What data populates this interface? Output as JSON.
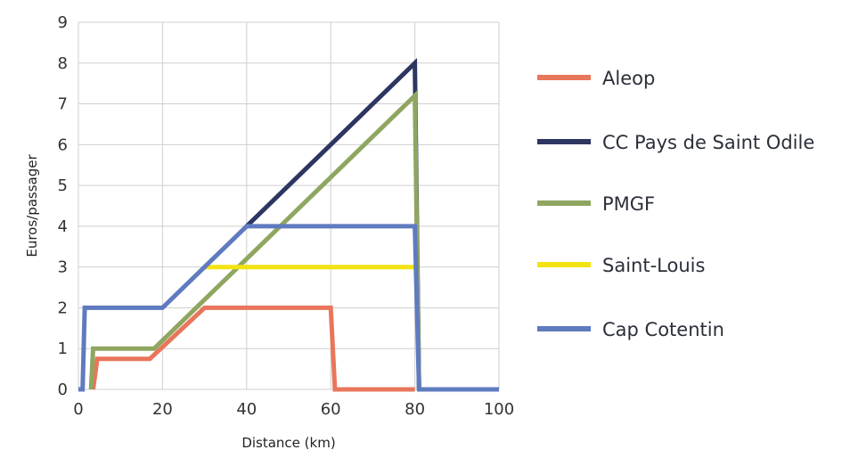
{
  "chart_data": {
    "type": "line",
    "title": "",
    "xlabel": "Distance (km)",
    "ylabel": "Euros/passager",
    "xlim": [
      0,
      100
    ],
    "ylim": [
      0,
      9
    ],
    "x_ticks": [
      0,
      20,
      40,
      60,
      80,
      100
    ],
    "y_ticks": [
      0,
      1,
      2,
      3,
      4,
      5,
      6,
      7,
      8,
      9
    ],
    "grid": true,
    "legend_position": "right",
    "series": [
      {
        "name": "Aleop",
        "color": "#e8765b",
        "points": [
          [
            3.5,
            0
          ],
          [
            4.5,
            0.75
          ],
          [
            17,
            0.75
          ],
          [
            30,
            2
          ],
          [
            60,
            2
          ],
          [
            61,
            0
          ],
          [
            80,
            0
          ]
        ]
      },
      {
        "name": "CC Pays de Saint Odile",
        "color": "#2d3561",
        "points": [
          [
            40,
            4
          ],
          [
            80,
            8
          ],
          [
            81,
            0
          ]
        ]
      },
      {
        "name": "PMGF",
        "color": "#8fa660",
        "points": [
          [
            3,
            0
          ],
          [
            3.5,
            1
          ],
          [
            18,
            1
          ],
          [
            80,
            7.2
          ],
          [
            81,
            0
          ]
        ]
      },
      {
        "name": "Saint-Louis",
        "color": "#f2e311",
        "points": [
          [
            30,
            3
          ],
          [
            80,
            3
          ]
        ]
      },
      {
        "name": "Cap Cotentin",
        "color": "#5f7bbf",
        "points": [
          [
            0,
            0
          ],
          [
            1,
            0
          ],
          [
            1.5,
            2
          ],
          [
            20,
            2
          ],
          [
            40,
            4
          ],
          [
            80,
            4
          ],
          [
            81,
            0
          ],
          [
            100,
            0
          ]
        ]
      }
    ]
  }
}
